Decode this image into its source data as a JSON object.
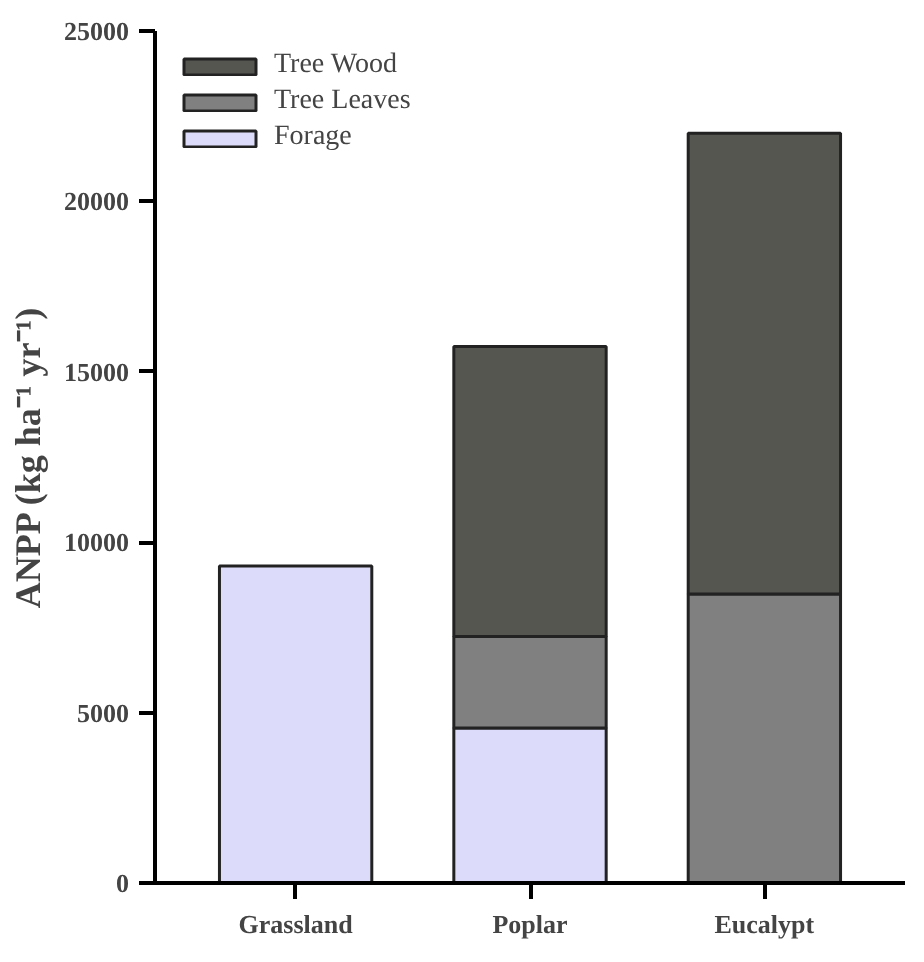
{
  "chart_data": {
    "type": "bar",
    "stacked": true,
    "ylabel": "ANPP (kg ha⁻¹ yr⁻¹)",
    "categories": [
      "Grassland",
      "Poplar",
      "Eucalypt"
    ],
    "series": [
      {
        "name": "Forage",
        "color": "#dcdcfa",
        "values": [
          9300,
          4550,
          null
        ]
      },
      {
        "name": "Tree Leaves",
        "color": "#808080",
        "values": [
          null,
          2680,
          8480
        ]
      },
      {
        "name": "Tree Wood",
        "color": "#555650",
        "values": [
          null,
          8510,
          13520
        ]
      }
    ],
    "ylim": [
      0,
      25000
    ],
    "yticks": [
      0,
      5000,
      10000,
      15000,
      20000,
      25000
    ],
    "grid": false,
    "legend": "top left"
  }
}
